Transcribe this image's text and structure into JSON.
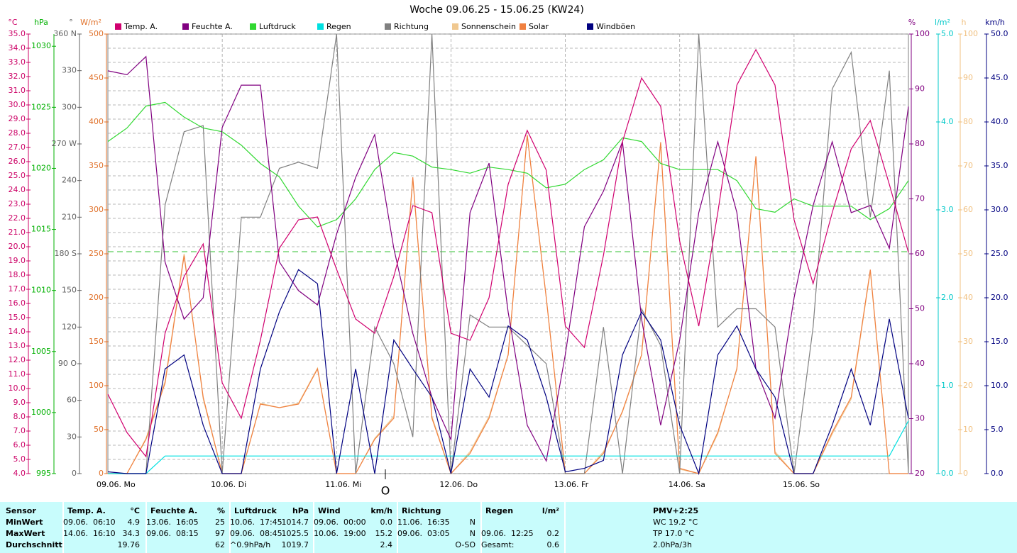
{
  "chart_data": {
    "type": "line",
    "title": "Woche 09.06.25 - 15.06.25 (KW24)",
    "marker_label": "O",
    "xlim": [
      0,
      168
    ],
    "xticks": [
      {
        "value": 0,
        "label": "09.06. Mo"
      },
      {
        "value": 24,
        "label": "10.06. Di"
      },
      {
        "value": 48,
        "label": "11.06. Mi"
      },
      {
        "value": 72,
        "label": "12.06. Do"
      },
      {
        "value": 96,
        "label": "13.06. Fr"
      },
      {
        "value": 120,
        "label": "14.06. Sa"
      },
      {
        "value": 144,
        "label": "15.06. So"
      }
    ],
    "grid": true,
    "axes": [
      {
        "unit": "°C",
        "color": "#cc0066",
        "lim": [
          4,
          35
        ],
        "ticks": [
          {
            "value": 4,
            "label": "4.0"
          },
          {
            "value": 5,
            "label": "5.0"
          },
          {
            "value": 6,
            "label": "6.0"
          },
          {
            "value": 7,
            "label": "7.0"
          },
          {
            "value": 8,
            "label": "8.0"
          },
          {
            "value": 9,
            "label": "9.0"
          },
          {
            "value": 10,
            "label": "10.0"
          },
          {
            "value": 11,
            "label": "11.0"
          },
          {
            "value": 12,
            "label": "12.0"
          },
          {
            "value": 13,
            "label": "13.0"
          },
          {
            "value": 14,
            "label": "14.0"
          },
          {
            "value": 15,
            "label": "15.0"
          },
          {
            "value": 16,
            "label": "16.0"
          },
          {
            "value": 17,
            "label": "17.0"
          },
          {
            "value": 18,
            "label": "18.0"
          },
          {
            "value": 19,
            "label": "19.0"
          },
          {
            "value": 20,
            "label": "20.0"
          },
          {
            "value": 21,
            "label": "21.0"
          },
          {
            "value": 22,
            "label": "22.0"
          },
          {
            "value": 23,
            "label": "23.0"
          },
          {
            "value": 24,
            "label": "24.0"
          },
          {
            "value": 25,
            "label": "25.0"
          },
          {
            "value": 26,
            "label": "26.0"
          },
          {
            "value": 27,
            "label": "27.0"
          },
          {
            "value": 28,
            "label": "28.0"
          },
          {
            "value": 29,
            "label": "29.0"
          },
          {
            "value": 30,
            "label": "30.0"
          },
          {
            "value": 31,
            "label": "31.0"
          },
          {
            "value": 32,
            "label": "32.0"
          },
          {
            "value": 33,
            "label": "33.0"
          },
          {
            "value": 34,
            "label": "34.0"
          },
          {
            "value": 35,
            "label": "35.0"
          }
        ]
      },
      {
        "unit": "hPa",
        "color": "#00b000",
        "lim": [
          995,
          1031
        ],
        "ticks": [
          995,
          1000,
          1005,
          1010,
          1015,
          1020,
          1025,
          1030
        ]
      },
      {
        "unit": "°",
        "color": "#606060",
        "lim": [
          0,
          360
        ],
        "ticks": [
          0,
          30,
          60,
          {
            "value": 90,
            "label": "90 O"
          },
          120,
          150,
          {
            "value": 180,
            "label": "180 S"
          },
          210,
          240,
          {
            "value": 270,
            "label": "270 W"
          },
          300,
          330,
          {
            "value": 360,
            "label": "360 N"
          }
        ]
      },
      {
        "unit": "W/m²",
        "color": "#e07028",
        "lim": [
          0,
          500
        ],
        "ticks": [
          0,
          50,
          100,
          150,
          200,
          250,
          300,
          350,
          400,
          450,
          500
        ]
      },
      {
        "unit": "%",
        "color": "#800080",
        "lim": [
          20,
          100
        ],
        "ticks": [
          20,
          30,
          40,
          50,
          60,
          70,
          80,
          90,
          100
        ]
      },
      {
        "unit": "l/m²",
        "color": "#00c8c8",
        "lim": [
          0,
          5
        ],
        "ticks": [
          {
            "value": 0,
            "label": "0.0"
          },
          {
            "value": 1,
            "label": "1.0"
          },
          {
            "value": 2,
            "label": "2.0"
          },
          {
            "value": 3,
            "label": "3.0"
          },
          {
            "value": 4,
            "label": "4.0"
          },
          {
            "value": 5,
            "label": "5.0"
          }
        ]
      },
      {
        "unit": "h",
        "color": "#f0c080",
        "lim": [
          0,
          100
        ],
        "ticks": [
          0,
          10,
          20,
          30,
          40,
          50,
          60,
          70,
          80,
          90,
          100
        ]
      },
      {
        "unit": "km/h",
        "color": "#000080",
        "lim": [
          0,
          50
        ],
        "ticks": [
          {
            "value": 0,
            "label": "0.0"
          },
          {
            "value": 5,
            "label": "5.0"
          },
          {
            "value": 10,
            "label": "10.0"
          },
          {
            "value": 15,
            "label": "15.0"
          },
          {
            "value": 20,
            "label": "20.0"
          },
          {
            "value": 25,
            "label": "25.0"
          },
          {
            "value": 30,
            "label": "30.0"
          },
          {
            "value": 35,
            "label": "35.0"
          },
          {
            "value": 40,
            "label": "40.0"
          },
          {
            "value": 45,
            "label": "45.0"
          },
          {
            "value": 50,
            "label": "50.0"
          }
        ]
      }
    ],
    "x": [
      0,
      4,
      8,
      12,
      16,
      20,
      24,
      28,
      32,
      36,
      40,
      44,
      48,
      52,
      56,
      60,
      64,
      68,
      72,
      76,
      80,
      84,
      88,
      92,
      96,
      100,
      104,
      108,
      112,
      116,
      120,
      124,
      128,
      132,
      136,
      140,
      144,
      148,
      152,
      156,
      160,
      164,
      168
    ],
    "series": [
      {
        "name": "Temp. A.",
        "color": "#d0006f",
        "axis": 0,
        "values": [
          9.6,
          6.9,
          5.2,
          13.9,
          17.9,
          20.2,
          10.4,
          7.9,
          13.4,
          19.9,
          21.9,
          22.1,
          18.4,
          14.9,
          13.9,
          17.9,
          22.9,
          22.4,
          13.9,
          13.4,
          16.4,
          24.4,
          28.2,
          25.4,
          14.4,
          12.9,
          19.4,
          27.4,
          31.9,
          29.9,
          20.4,
          14.4,
          22.4,
          31.4,
          33.9,
          31.4,
          21.9,
          17.4,
          22.4,
          26.9,
          28.9,
          24.4,
          19.6
        ]
      },
      {
        "name": "Feuchte A.",
        "color": "#800080",
        "axis": 4,
        "values": [
          93.3,
          92.6,
          95.9,
          58.5,
          48.1,
          52,
          83,
          90.7,
          90.7,
          58.5,
          53.3,
          50.7,
          63.6,
          73.9,
          81.7,
          61,
          45.5,
          33.9,
          26.2,
          67.5,
          76.5,
          49.4,
          28.8,
          22.3,
          41.7,
          64.9,
          71.4,
          80.4,
          48.1,
          28.8,
          44.3,
          67.5,
          80.4,
          67.5,
          39.1,
          30.1,
          52,
          68.8,
          80.4,
          67.5,
          68.8,
          61,
          86.8
        ]
      },
      {
        "name": "Luftdruck",
        "color": "#30d830",
        "axis": 1,
        "values": [
          1022.2,
          1023.3,
          1025.1,
          1025.4,
          1024.2,
          1023.3,
          1023,
          1021.9,
          1020.4,
          1019.3,
          1016.9,
          1015.2,
          1015.8,
          1017.5,
          1019.9,
          1021.3,
          1021,
          1020.1,
          1019.9,
          1019.6,
          1020.1,
          1019.9,
          1019.6,
          1018.4,
          1018.7,
          1019.9,
          1020.7,
          1022.5,
          1022.2,
          1020.4,
          1019.9,
          1019.9,
          1019.9,
          1019,
          1016.7,
          1016.4,
          1017.5,
          1016.9,
          1016.9,
          1016.9,
          1015.8,
          1016.7,
          1019
        ]
      },
      {
        "name": "Regen",
        "color": "#00e0e0",
        "axis": 5,
        "values": [
          0,
          0,
          0,
          0.2,
          0.2,
          0.2,
          0.2,
          0.2,
          0.2,
          0.2,
          0.2,
          0.2,
          0.2,
          0.2,
          0.2,
          0.2,
          0.2,
          0.2,
          0.2,
          0.2,
          0.2,
          0.2,
          0.2,
          0.2,
          0.2,
          0.2,
          0.2,
          0.2,
          0.2,
          0.2,
          0.2,
          0.2,
          0.2,
          0.2,
          0.2,
          0.2,
          0.2,
          0.2,
          0.2,
          0.2,
          0.2,
          0.2,
          0.6
        ]
      },
      {
        "name": "Richtung",
        "color": "#808080",
        "axis": 2,
        "values": [
          0,
          0,
          0,
          220,
          280,
          285,
          0,
          210,
          210,
          250,
          255,
          250,
          360,
          0,
          120,
          90,
          30,
          360,
          0,
          130,
          120,
          120,
          105,
          90,
          0,
          0,
          120,
          0,
          135,
          105,
          0,
          360,
          120,
          135,
          135,
          120,
          0,
          120,
          315,
          345,
          210,
          330,
          0
        ]
      },
      {
        "name": "Sonnenschein",
        "color": "#f0c890",
        "axis": 6,
        "values": [
          0,
          0,
          8,
          21,
          50,
          17,
          0,
          0,
          16,
          15,
          16,
          24,
          0,
          0,
          8,
          13,
          67,
          13,
          0,
          5,
          13,
          27,
          77,
          40,
          0,
          0,
          5,
          14,
          27,
          75,
          1,
          0,
          9,
          24,
          72,
          5,
          0,
          0,
          9,
          17,
          46,
          0,
          0
        ]
      },
      {
        "name": "Solar",
        "color": "#f08040",
        "axis": 3,
        "values": [
          0,
          0,
          39,
          103,
          248,
          87,
          0,
          0,
          79,
          75,
          79,
          119,
          0,
          0,
          39,
          63,
          337,
          63,
          0,
          23,
          63,
          135,
          385,
          200,
          0,
          0,
          23,
          71,
          135,
          377,
          6,
          0,
          47,
          119,
          361,
          23,
          0,
          0,
          47,
          87,
          232,
          0,
          0
        ]
      },
      {
        "name": "Windböen",
        "color": "#000080",
        "axis": 7,
        "values": [
          0.2,
          0,
          0,
          11.9,
          13.5,
          5.5,
          0,
          0,
          11.9,
          18.4,
          23.2,
          21.6,
          0,
          11.9,
          0,
          15.2,
          11.9,
          8.7,
          0,
          11.9,
          8.7,
          16.8,
          15.2,
          8.7,
          0.2,
          0.6,
          1.5,
          13.5,
          18.4,
          15.2,
          5.5,
          0,
          13.5,
          16.8,
          11.9,
          8.7,
          0,
          0,
          5.5,
          11.9,
          5.5,
          17.6,
          6.3
        ]
      }
    ]
  },
  "stats": {
    "header": {
      "label": "Sensor",
      "columns": [
        {
          "name": "Temp. A.",
          "unit": "°C"
        },
        {
          "name": "Feuchte A.",
          "unit": "%"
        },
        {
          "name": "Luftdruck",
          "unit": "hPa"
        },
        {
          "name": "Wind",
          "unit": "km/h"
        },
        {
          "name": "Richtung",
          "unit": null
        },
        {
          "name": "Regen",
          "unit": "l/m²"
        }
      ],
      "extra": "PMV+2:25"
    },
    "rows": [
      {
        "label": "MinWert",
        "cells": [
          [
            "09.06.  06:10",
            "4.9"
          ],
          [
            "13.06.  16:05",
            "25"
          ],
          [
            "10.06.  17:45",
            "1014.7"
          ],
          [
            "09.06.  00:00",
            "0.0"
          ],
          [
            "11.06.  16:35",
            "N"
          ],
          null
        ],
        "extra": "WC 19.2 °C"
      },
      {
        "label": "MaxWert",
        "cells": [
          [
            "14.06.  16:10",
            "34.3"
          ],
          [
            "09.06.  08:15",
            "97"
          ],
          [
            "09.06.  08:45",
            "1025.5"
          ],
          [
            "10.06.  19:00",
            "15.2"
          ],
          [
            "09.06.  03:05",
            "N"
          ],
          [
            "09.06.  12:25",
            "0.2"
          ]
        ],
        "extra": "TP 17.0 °C"
      },
      {
        "label": "Durchschnitt",
        "cells": [
          [
            null,
            "19.76"
          ],
          [
            null,
            "62"
          ],
          [
            "^0.9hPa/h",
            "1019.7"
          ],
          [
            null,
            "2.4"
          ],
          [
            null,
            "O-SO"
          ],
          [
            "Gesamt:",
            "0.6"
          ]
        ],
        "extra": "2.0hPa/3h"
      }
    ]
  }
}
